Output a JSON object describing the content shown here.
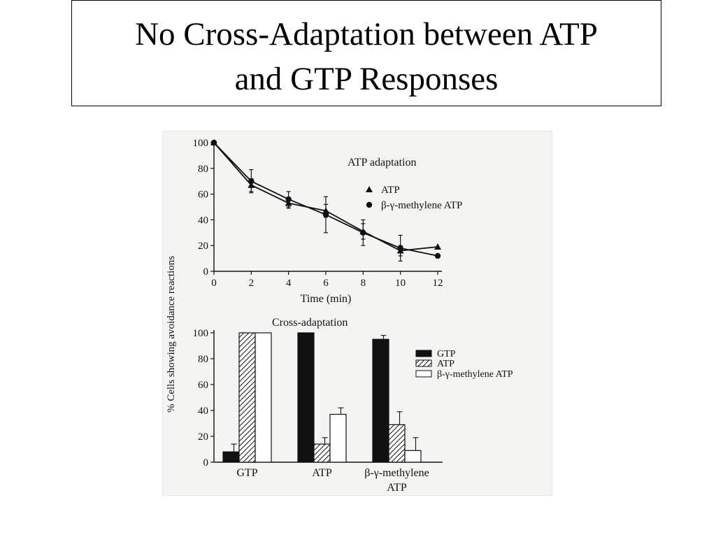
{
  "slide": {
    "title_line1": "No Cross-Adaptation between ATP",
    "title_line2": "and GTP Responses"
  },
  "colors": {
    "ink": "#111111",
    "figure_bg": "#f4f4f2",
    "bar_black": "#111111",
    "bar_white": "#ffffff"
  },
  "shared_ylabel": "% Cells showing avoidance reactions",
  "chart_data": [
    {
      "type": "line",
      "title": "ATP adaptation",
      "xlabel": "Time (min)",
      "ylabel": "% Cells showing avoidance reactions",
      "xlim": [
        0,
        12
      ],
      "ylim": [
        0,
        100
      ],
      "x_ticks": [
        0,
        2,
        4,
        6,
        8,
        10,
        12
      ],
      "y_ticks": [
        0,
        20,
        40,
        60,
        80,
        100
      ],
      "legend_position": "right",
      "series": [
        {
          "name": "ATP",
          "marker": "triangle",
          "x": [
            0,
            2,
            4,
            6,
            8,
            10,
            12
          ],
          "y": [
            100,
            67,
            53,
            47,
            31,
            16,
            19
          ],
          "err": [
            0,
            5,
            4,
            5,
            6,
            4,
            0
          ]
        },
        {
          "name": "β-γ-methylene ATP",
          "marker": "circle",
          "x": [
            0,
            2,
            4,
            6,
            8,
            10,
            12
          ],
          "y": [
            100,
            70,
            56,
            44,
            30,
            18,
            12
          ],
          "err": [
            0,
            9,
            6,
            14,
            10,
            10,
            0
          ]
        }
      ]
    },
    {
      "type": "bar",
      "title": "Cross-adaptation",
      "ylabel": "% Cells showing avoidance reactions",
      "ylim": [
        0,
        100
      ],
      "y_ticks": [
        0,
        20,
        40,
        60,
        80,
        100
      ],
      "legend_position": "right",
      "categories": [
        "GTP",
        "ATP",
        "β-γ-methylene ATP"
      ],
      "category_labels": [
        [
          "GTP"
        ],
        [
          "ATP"
        ],
        [
          "β-γ-methylene",
          "ATP"
        ]
      ],
      "series": [
        {
          "name": "GTP",
          "fill": "solid",
          "values": [
            8,
            100,
            95
          ],
          "err": [
            6,
            0,
            3
          ]
        },
        {
          "name": "ATP",
          "fill": "hatched",
          "values": [
            100,
            14,
            29
          ],
          "err": [
            0,
            5,
            10
          ]
        },
        {
          "name": "β-γ-methylene ATP",
          "fill": "open",
          "values": [
            100,
            37,
            9
          ],
          "err": [
            0,
            5,
            10
          ]
        }
      ]
    }
  ]
}
